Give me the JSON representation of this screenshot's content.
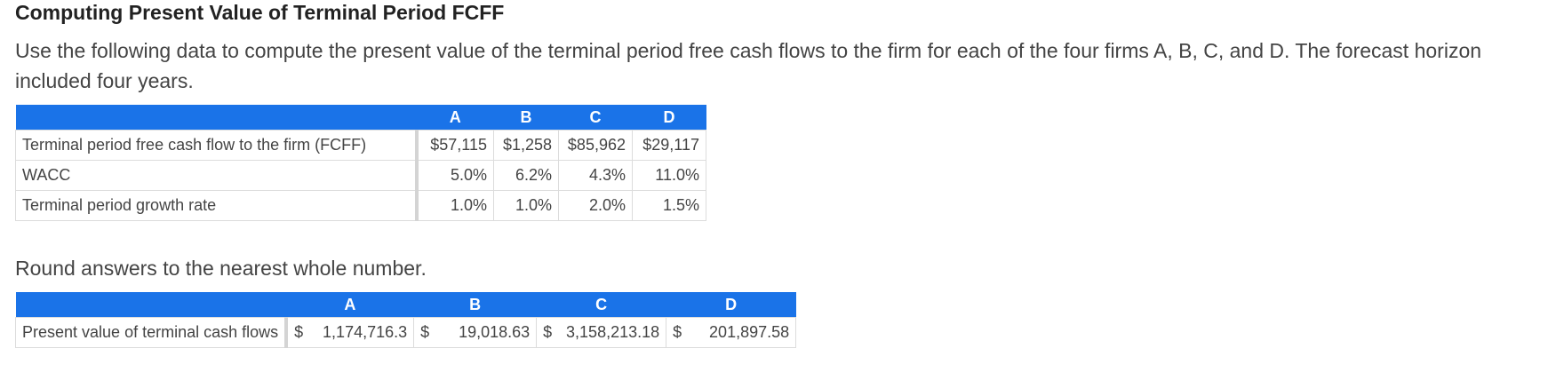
{
  "title": "Computing Present Value of Terminal Period FCFF",
  "intro": "Use the following data to compute the present value of the terminal period free cash flows to the firm for each of the four firms A, B, C, and D. The forecast horizon included four years.",
  "input_table": {
    "headers": [
      "",
      "A",
      "B",
      "C",
      "D"
    ],
    "rows": [
      {
        "label": "Terminal period free cash flow to the firm (FCFF)",
        "values": [
          "$57,115",
          "$1,258",
          "$85,962",
          "$29,117"
        ]
      },
      {
        "label": "WACC",
        "values": [
          "5.0%",
          "6.2%",
          "4.3%",
          "11.0%"
        ]
      },
      {
        "label": "Terminal period growth rate",
        "values": [
          "1.0%",
          "1.0%",
          "2.0%",
          "1.5%"
        ]
      }
    ]
  },
  "round_note": "Round answers to the nearest whole number.",
  "answer_table": {
    "headers": [
      "",
      "A",
      "B",
      "C",
      "D"
    ],
    "row": {
      "label": "Present value of terminal cash flows",
      "currency": "$",
      "values": [
        "1,174,716.3",
        "19,018.63",
        "3,158,213.18",
        "201,897.58"
      ]
    }
  },
  "colors": {
    "header_bg": "#1a73e8",
    "header_text": "#ffffff",
    "body_text": "#444444",
    "border": "#dcdcdc"
  }
}
